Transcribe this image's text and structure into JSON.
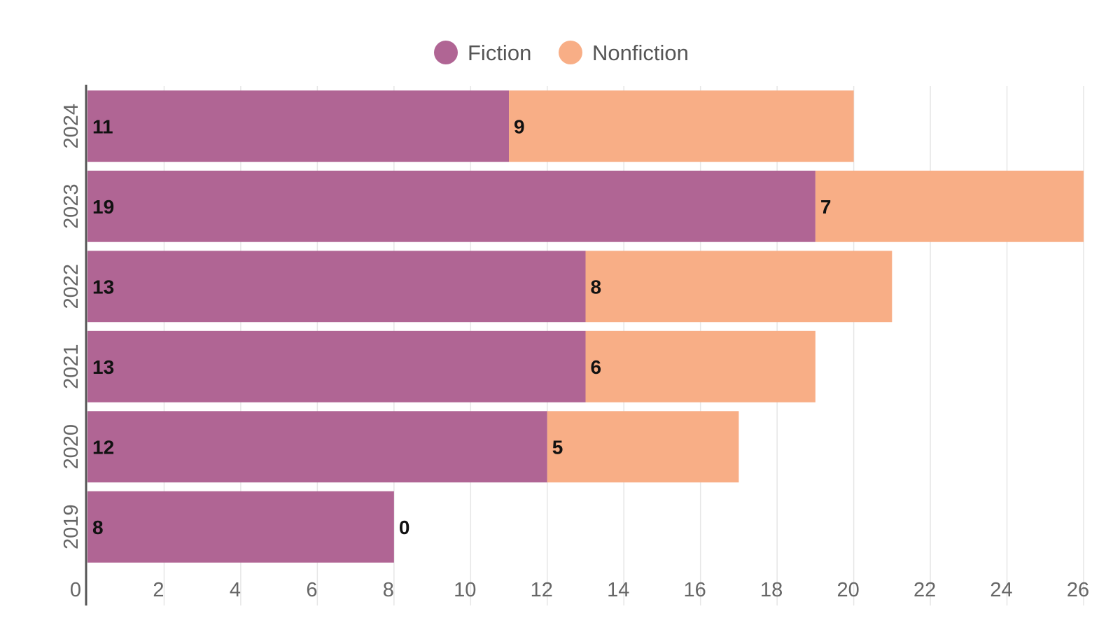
{
  "colors": {
    "fiction": "#B06594",
    "nonfiction": "#F8AE86",
    "grid": "#E6E6E6",
    "axis": "#555555"
  },
  "legend": {
    "items": [
      {
        "label": "Fiction",
        "color": "#B06594"
      },
      {
        "label": "Nonfiction",
        "color": "#F8AE86"
      }
    ]
  },
  "chart_data": {
    "type": "bar",
    "orientation": "horizontal",
    "stacked": true,
    "categories": [
      "2024",
      "2023",
      "2022",
      "2021",
      "2020",
      "2019"
    ],
    "series": [
      {
        "name": "Fiction",
        "color": "#B06594",
        "values": [
          11,
          19,
          13,
          13,
          12,
          8
        ]
      },
      {
        "name": "Nonfiction",
        "color": "#F8AE86",
        "values": [
          9,
          7,
          8,
          6,
          5,
          0
        ]
      }
    ],
    "xlim": [
      0,
      26
    ],
    "xticks": [
      "0",
      "2",
      "4",
      "6",
      "8",
      "10",
      "12",
      "14",
      "16",
      "18",
      "20",
      "22",
      "24",
      "26"
    ],
    "grid": true,
    "legend_position": "top-center",
    "title": "",
    "xlabel": "",
    "ylabel": ""
  }
}
